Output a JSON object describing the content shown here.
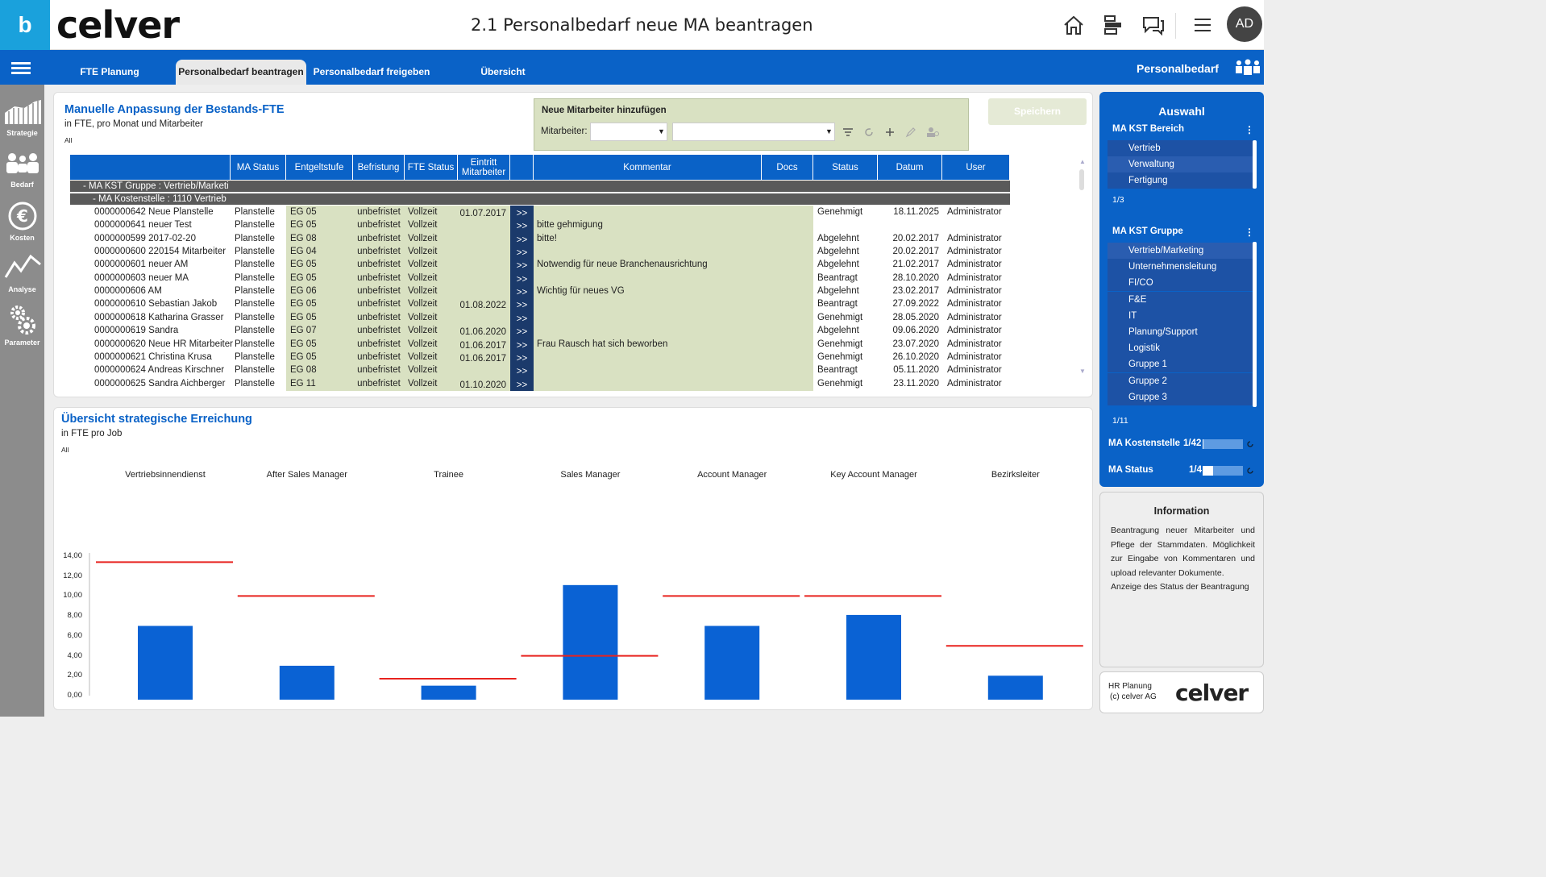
{
  "header": {
    "logo_letter": "b",
    "brand": "celver",
    "title": "2.1 Personalbedarf neue MA beantragen",
    "avatar": "AD",
    "icons": [
      "home-icon",
      "hierarchy-icon",
      "chat-icon",
      "menu-icon"
    ]
  },
  "nav": {
    "tabs": [
      {
        "label": "FTE Planung"
      },
      {
        "label": "Personalbedarf beantragen"
      },
      {
        "label": "Personalbedarf freigeben"
      },
      {
        "label": "Übersicht"
      }
    ],
    "active_tab": 1,
    "right_label": "Personalbedarf"
  },
  "leftbar": {
    "items": [
      {
        "label": "Strategie",
        "icon": "strategy-icon"
      },
      {
        "label": "Bedarf",
        "icon": "people-icon"
      },
      {
        "label": "Kosten",
        "icon": "euro-icon"
      },
      {
        "label": "Analyse",
        "icon": "line-chart-icon"
      },
      {
        "label": "Parameter",
        "icon": "gears-icon"
      }
    ]
  },
  "panel1": {
    "title": "Manuelle Anpassung der Bestands-FTE",
    "subtitle": "in FTE, pro Monat und Mitarbeiter",
    "filter": "All",
    "add_box": {
      "title": "Neue Mitarbeiter hinzufügen",
      "field_label": "Mitarbeiter:",
      "select1": "",
      "select2": ""
    },
    "save_button": "Speichern",
    "table": {
      "columns": [
        "MA Status",
        "Entgeltstufe",
        "Befristung",
        "FTE Status",
        "Eintritt Mitarbeiter",
        "",
        "Kommentar",
        "Docs",
        "Status",
        "Datum",
        "User"
      ],
      "group1": "-  MA KST Gruppe : Vertrieb/Marketi",
      "group2": "-  MA Kostenstelle  : 1110 Vertrieb",
      "rows": [
        {
          "name": "0000000642 Neue Planstelle",
          "ma_status": "Planstelle",
          "entgelt": "EG 05",
          "befristung": "unbefristet",
          "fte": "Vollzeit",
          "eintritt": "01.07.2017",
          "arrow": ">>",
          "kommentar": "",
          "status": "Genehmigt",
          "datum": "18.11.2025",
          "user": "Administrator"
        },
        {
          "name": "0000000641 neuer Test",
          "ma_status": "Planstelle",
          "entgelt": "EG 05",
          "befristung": "unbefristet",
          "fte": "Vollzeit",
          "eintritt": "",
          "arrow": ">>",
          "kommentar": "bitte gehmigung",
          "status": "",
          "datum": "",
          "user": ""
        },
        {
          "name": "0000000599 2017-02-20",
          "ma_status": "Planstelle",
          "entgelt": "EG 08",
          "befristung": "unbefristet",
          "fte": "Vollzeit",
          "eintritt": "",
          "arrow": ">>",
          "kommentar": "bitte!",
          "status": "Abgelehnt",
          "datum": "20.02.2017",
          "user": "Administrator"
        },
        {
          "name": "0000000600 220154 Mitarbeiter",
          "ma_status": "Planstelle",
          "entgelt": "EG 04",
          "befristung": "unbefristet",
          "fte": "Vollzeit",
          "eintritt": "",
          "arrow": ">>",
          "kommentar": "",
          "status": "Abgelehnt",
          "datum": "20.02.2017",
          "user": "Administrator"
        },
        {
          "name": "0000000601 neuer AM",
          "ma_status": "Planstelle",
          "entgelt": "EG 05",
          "befristung": "unbefristet",
          "fte": "Vollzeit",
          "eintritt": "",
          "arrow": ">>",
          "kommentar": "Notwendig für neue Branchenausrichtung",
          "status": "Abgelehnt",
          "datum": "21.02.2017",
          "user": "Administrator"
        },
        {
          "name": "0000000603 neuer MA",
          "ma_status": "Planstelle",
          "entgelt": "EG 05",
          "befristung": "unbefristet",
          "fte": "Vollzeit",
          "eintritt": "",
          "arrow": ">>",
          "kommentar": "",
          "status": "Beantragt",
          "datum": "28.10.2020",
          "user": "Administrator"
        },
        {
          "name": "0000000606 AM",
          "ma_status": "Planstelle",
          "entgelt": "EG 06",
          "befristung": "unbefristet",
          "fte": "Vollzeit",
          "eintritt": "",
          "arrow": ">>",
          "kommentar": "Wichtig für neues VG",
          "status": "Abgelehnt",
          "datum": "23.02.2017",
          "user": "Administrator"
        },
        {
          "name": "0000000610 Sebastian Jakob",
          "ma_status": "Planstelle",
          "entgelt": "EG 05",
          "befristung": "unbefristet",
          "fte": "Vollzeit",
          "eintritt": "01.08.2022",
          "arrow": ">>",
          "kommentar": "",
          "status": "Beantragt",
          "datum": "27.09.2022",
          "user": "Administrator"
        },
        {
          "name": "0000000618 Katharina Grasser",
          "ma_status": "Planstelle",
          "entgelt": "EG 05",
          "befristung": "unbefristet",
          "fte": "Vollzeit",
          "eintritt": "",
          "arrow": ">>",
          "kommentar": "",
          "status": "Genehmigt",
          "datum": "28.05.2020",
          "user": "Administrator"
        },
        {
          "name": "0000000619 Sandra",
          "ma_status": "Planstelle",
          "entgelt": "EG 07",
          "befristung": "unbefristet",
          "fte": "Vollzeit",
          "eintritt": "01.06.2020",
          "arrow": ">>",
          "kommentar": "",
          "status": "Abgelehnt",
          "datum": "09.06.2020",
          "user": "Administrator"
        },
        {
          "name": "0000000620 Neue HR Mitarbeiter",
          "ma_status": "Planstelle",
          "entgelt": "EG 05",
          "befristung": "unbefristet",
          "fte": "Vollzeit",
          "eintritt": "01.06.2017",
          "arrow": ">>",
          "kommentar": "Frau Rausch hat sich beworben",
          "status": "Genehmigt",
          "datum": "23.07.2020",
          "user": "Administrator"
        },
        {
          "name": "0000000621 Christina Krusa",
          "ma_status": "Planstelle",
          "entgelt": "EG 05",
          "befristung": "unbefristet",
          "fte": "Vollzeit",
          "eintritt": "01.06.2017",
          "arrow": ">>",
          "kommentar": "",
          "status": "Genehmigt",
          "datum": "26.10.2020",
          "user": "Administrator"
        },
        {
          "name": "0000000624 Andreas Kirschner",
          "ma_status": "Planstelle",
          "entgelt": "EG 08",
          "befristung": "unbefristet",
          "fte": "Vollzeit",
          "eintritt": "",
          "arrow": ">>",
          "kommentar": "",
          "status": "Beantragt",
          "datum": "05.11.2020",
          "user": "Administrator"
        },
        {
          "name": "0000000625 Sandra Aichberger",
          "ma_status": "Planstelle",
          "entgelt": "EG 11",
          "befristung": "unbefristet",
          "fte": "Vollzeit",
          "eintritt": "01.10.2020",
          "arrow": ">>",
          "kommentar": "",
          "status": "Genehmigt",
          "datum": "23.11.2020",
          "user": "Administrator"
        }
      ]
    }
  },
  "panel2": {
    "title": "Übersicht strategische Erreichung",
    "subtitle": "in FTE pro Job",
    "filter": "All"
  },
  "chart_data": {
    "type": "bar",
    "categories": [
      "Vertriebsinnendienst",
      "After Sales Manager",
      "Trainee",
      "Sales Manager",
      "Account Manager",
      "Key Account Manager",
      "Bezirksleiter"
    ],
    "series": [
      {
        "values": [
          7.0,
          3.0,
          1.0,
          11.1,
          7.0,
          8.1,
          2.0
        ]
      },
      {
        "values": [
          13.4,
          10.0,
          1.7,
          4.0,
          10.0,
          10.0,
          5.0
        ]
      }
    ],
    "series_styles": [
      "bar",
      "target-line"
    ],
    "colors": {
      "bar": "#0a62d4",
      "target": "#e8231f"
    },
    "yticks": [
      "0,00",
      "2,00",
      "4,00",
      "6,00",
      "8,00",
      "10,00",
      "12,00",
      "14,00"
    ],
    "ylim": [
      0,
      14
    ]
  },
  "auswahl": {
    "title": "Auswahl",
    "bereich_label": "MA KST Bereich",
    "bereich_items": [
      "Vertrieb",
      "Verwaltung",
      "Fertigung"
    ],
    "bereich_count": "1/3",
    "gruppe_label": "MA KST Gruppe",
    "gruppe_items": [
      "Vertrieb/Marketing",
      "Unternehmensleitung",
      "FI/CO",
      "F&E",
      "IT",
      "Planung/Support",
      "Logistik",
      "Gruppe 1",
      "Gruppe 2",
      "Gruppe 3"
    ],
    "gruppe_count": "1/11",
    "kostenstelle_label": "MA Kostenstelle",
    "kostenstelle_count": "1/42",
    "kostenstelle_fill": 0.025,
    "status_label": "MA Status",
    "status_count": "1/4",
    "status_fill": 0.25
  },
  "info": {
    "title": "Information",
    "text1": "Beantragung neuer Mitarbeiter und Pflege der Stammdaten. Möglichkeit zur Eingabe von Kommentaren und upload relevanter Dokumente.",
    "text2": "Anzeige des Status der Beantragung"
  },
  "footer": {
    "line1": "HR Planung",
    "line2": "(c) celver AG",
    "brand": "celver"
  }
}
